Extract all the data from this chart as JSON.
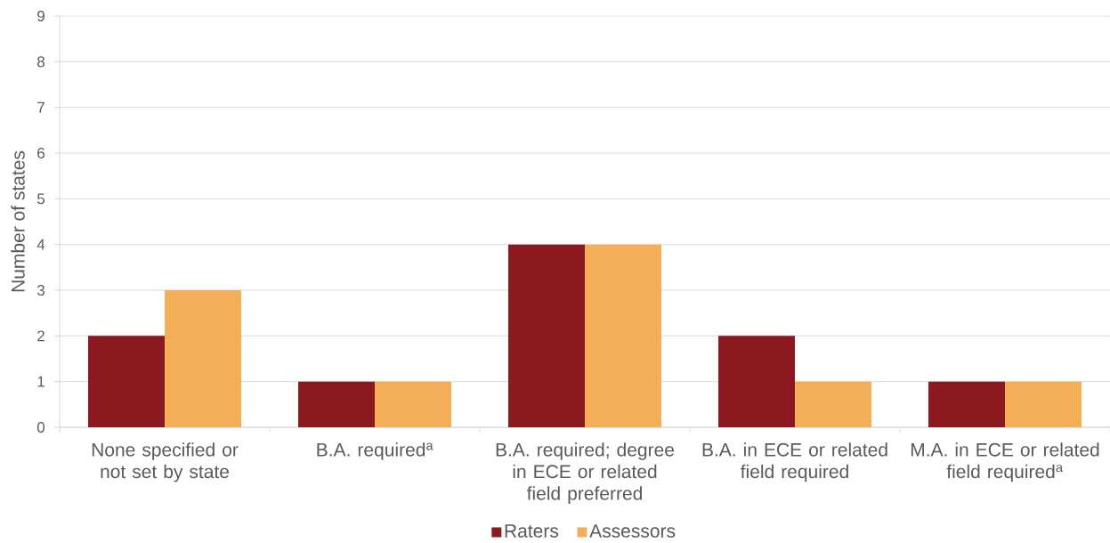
{
  "chart_data": {
    "type": "bar",
    "ylabel": "Number of states",
    "categories": [
      "None specified or not set by state",
      "B.A. required$^{a}$",
      "B.A. required; degree in ECE or related field preferred",
      "B.A. in ECE or related field required",
      "M.A. in ECE or related field required$^{a}$"
    ],
    "series": [
      {
        "name": "Raters",
        "color": "#8c1820",
        "values": [
          2,
          1,
          4,
          2,
          1
        ]
      },
      {
        "name": "Assessors",
        "color": "#f5ae58",
        "values": [
          3,
          1,
          4,
          1,
          1
        ]
      }
    ],
    "ylim": [
      0,
      9
    ],
    "yticks": [
      0,
      1,
      2,
      3,
      4,
      5,
      6,
      7,
      8,
      9
    ],
    "grid": "y",
    "legend": "bottom"
  }
}
